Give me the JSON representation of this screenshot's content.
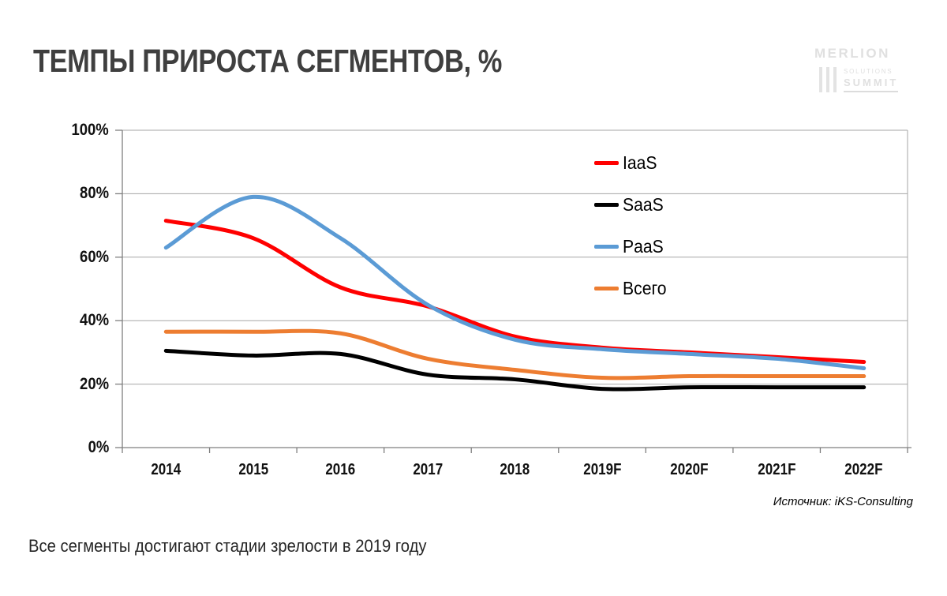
{
  "slide": {
    "title": "ТЕМПЫ ПРИРОСТА СЕГМЕНТОВ, %",
    "source": "Источник: iKS-Consulting",
    "footnote": "Все сегменты достигают стадии зрелости в 2019 году",
    "logo": {
      "line1": "MERLION",
      "line2": "SOLUTIONS",
      "line3": "SUMMIT"
    }
  },
  "chart_data": {
    "type": "line",
    "title": "ТЕМПЫ ПРИРОСТА СЕГМЕНТОВ, %",
    "categories": [
      "2014",
      "2015",
      "2016",
      "2017",
      "2018",
      "2019F",
      "2020F",
      "2021F",
      "2022F"
    ],
    "series": [
      {
        "name": "IaaS",
        "color": "#ff0000",
        "values": [
          71.5,
          66,
          50.5,
          44.5,
          35,
          31.5,
          30,
          28.5,
          27
        ]
      },
      {
        "name": "SaaS",
        "color": "#000000",
        "values": [
          30.5,
          29,
          29.5,
          23,
          21.5,
          18.5,
          19,
          19,
          19
        ]
      },
      {
        "name": "PaaS",
        "color": "#5b9bd5",
        "values": [
          63,
          79,
          66,
          45,
          34,
          31,
          29.5,
          28,
          25
        ]
      },
      {
        "name": "Всего",
        "color": "#ed7d31",
        "values": [
          36.5,
          36.5,
          36,
          28,
          24.5,
          22,
          22.5,
          22.5,
          22.5
        ]
      }
    ],
    "ylim": [
      0,
      100
    ],
    "y_ticks": [
      "100%",
      "80%",
      "60%",
      "40%",
      "20%",
      "0%"
    ],
    "grid": true,
    "smooth": true,
    "legend_position": "inside-upper-right",
    "grid_color": "#a6a6a6",
    "axis_color": "#7f7f7f"
  }
}
